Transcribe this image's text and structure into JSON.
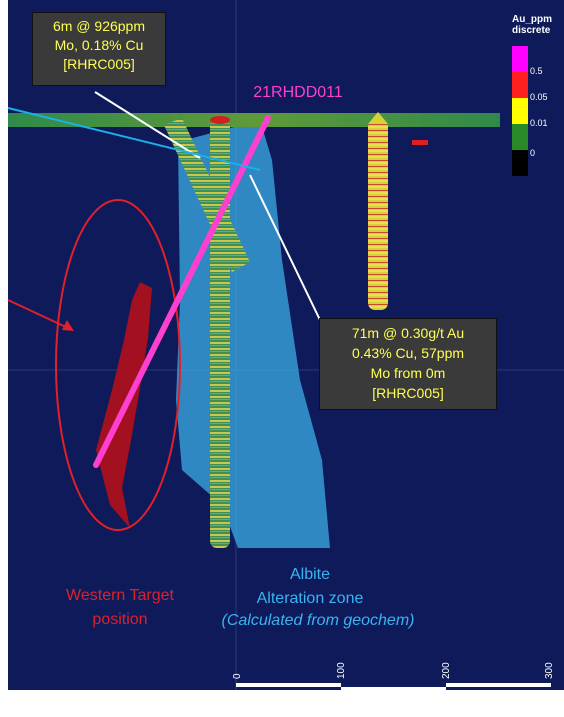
{
  "callouts": {
    "top_left": [
      "6m @ 926ppm",
      "Mo, 0.18% Cu",
      "[RHRC005]"
    ],
    "right": [
      "71m @ 0.30g/t Au",
      "0.43% Cu, 57ppm",
      "Mo from 0m",
      "[RHRC005]"
    ]
  },
  "labels": {
    "hole": "21RHDD011",
    "albite": [
      "Albite",
      "Alteration zone"
    ],
    "albite_note": "(Calculated from geochem)",
    "western_target": [
      "Western Target",
      "position"
    ]
  },
  "legend": {
    "title": [
      "Au_ppm",
      "discrete"
    ],
    "values": [
      "0.5",
      "0.05",
      "0.01",
      "0"
    ],
    "colors": [
      "#ff00ff",
      "#ff1f1f",
      "#ffff00",
      "#2a8a2a",
      "#000000"
    ]
  },
  "scale": {
    "ticks": [
      "0",
      "100",
      "200",
      "300"
    ]
  },
  "colors": {
    "background": "#0e1a5a",
    "hole_line": "#ff3fcf",
    "alteration": "#3aa8e0",
    "target": "#a3101f",
    "label_red": "#e0202a",
    "label_blue": "#3ab4f0"
  }
}
